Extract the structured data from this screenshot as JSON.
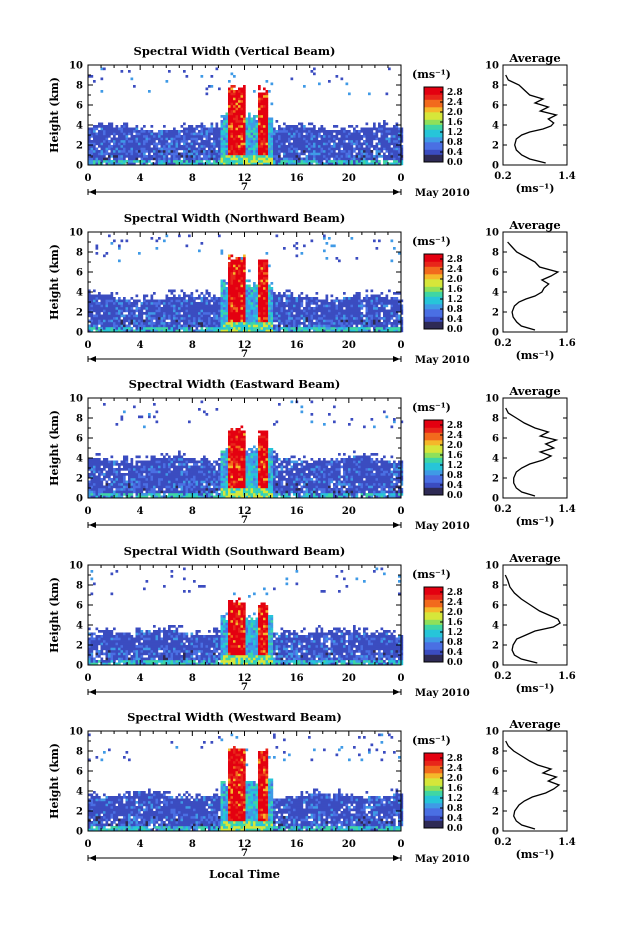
{
  "figure": {
    "x_label": "Local Time",
    "date_label": "May 2010",
    "day_label": "7",
    "average_title": "Average",
    "unit_label": "(ms⁻¹)"
  },
  "colors": {
    "scale": [
      "#2e2a55",
      "#3b4cc0",
      "#4a6fe3",
      "#3f9ae6",
      "#27c5d9",
      "#3fd6a4",
      "#8fe05a",
      "#d6e63a",
      "#f5b82a",
      "#f26a1d",
      "#e8261a",
      "#e40010"
    ]
  },
  "chart_data": [
    {
      "type": "heatmap",
      "title": "Spectral Width (Vertical Beam)",
      "xlabel": "",
      "ylabel": "Height (km)",
      "x_ticks": [
        "0",
        "4",
        "8",
        "12",
        "16",
        "20",
        "0"
      ],
      "y_ticks": [
        "0",
        "2",
        "4",
        "6",
        "8",
        "10"
      ],
      "xlim": [
        0,
        24
      ],
      "ylim": [
        0,
        10
      ],
      "colorbar": {
        "label": "(ms⁻¹)",
        "ticks": [
          "0.0",
          "0.4",
          "0.8",
          "1.2",
          "1.6",
          "2.0",
          "2.4",
          "2.8"
        ],
        "range": [
          0,
          3.0
        ]
      },
      "features": {
        "boundary_layer_top_km": 3.8,
        "convection_hours": [
          10,
          14
        ],
        "convection_top_km": 8.0
      },
      "average_profile": {
        "title": "Average",
        "xlabel": "(ms⁻¹)",
        "ylabel": "",
        "x_ticks": [
          "0.2",
          "1.4"
        ],
        "xlim": [
          0.2,
          1.4
        ],
        "y_ticks": [
          "0",
          "2",
          "4",
          "6",
          "8",
          "10"
        ],
        "ylim": [
          0,
          10
        ],
        "points": [
          [
            1.0,
            0.2
          ],
          [
            0.7,
            0.6
          ],
          [
            0.55,
            1.0
          ],
          [
            0.45,
            1.5
          ],
          [
            0.42,
            2.0
          ],
          [
            0.45,
            2.6
          ],
          [
            0.55,
            3.0
          ],
          [
            0.7,
            3.3
          ],
          [
            0.95,
            3.6
          ],
          [
            1.1,
            3.9
          ],
          [
            1.15,
            4.2
          ],
          [
            1.05,
            4.6
          ],
          [
            1.2,
            5.0
          ],
          [
            0.9,
            5.4
          ],
          [
            1.05,
            5.8
          ],
          [
            0.8,
            6.2
          ],
          [
            0.95,
            6.6
          ],
          [
            0.7,
            7.0
          ],
          [
            0.6,
            7.5
          ],
          [
            0.5,
            8.0
          ],
          [
            0.3,
            8.5
          ],
          [
            0.25,
            9.0
          ]
        ]
      }
    },
    {
      "type": "heatmap",
      "title": "Spectral Width (Northward Beam)",
      "xlabel": "",
      "ylabel": "Height (km)",
      "x_ticks": [
        "0",
        "4",
        "8",
        "12",
        "16",
        "20",
        "0"
      ],
      "y_ticks": [
        "0",
        "2",
        "4",
        "6",
        "8",
        "10"
      ],
      "xlim": [
        0,
        24
      ],
      "ylim": [
        0,
        10
      ],
      "colorbar": {
        "label": "(ms⁻¹)",
        "ticks": [
          "0.0",
          "0.4",
          "0.8",
          "1.2",
          "1.6",
          "2.0",
          "2.4",
          "2.8"
        ],
        "range": [
          0,
          3.0
        ]
      },
      "features": {
        "boundary_layer_top_km": 3.6,
        "convection_hours": [
          10,
          14
        ],
        "convection_top_km": 7.5
      },
      "average_profile": {
        "title": "Average",
        "xlabel": "(ms⁻¹)",
        "ylabel": "",
        "x_ticks": [
          "0.2",
          "1.6"
        ],
        "xlim": [
          0.2,
          1.6
        ],
        "y_ticks": [
          "0",
          "2",
          "4",
          "6",
          "8",
          "10"
        ],
        "ylim": [
          0,
          10
        ],
        "points": [
          [
            0.9,
            0.2
          ],
          [
            0.6,
            0.6
          ],
          [
            0.5,
            1.0
          ],
          [
            0.42,
            1.5
          ],
          [
            0.4,
            2.0
          ],
          [
            0.45,
            2.6
          ],
          [
            0.55,
            3.0
          ],
          [
            0.7,
            3.3
          ],
          [
            0.9,
            3.6
          ],
          [
            1.05,
            4.0
          ],
          [
            1.1,
            4.4
          ],
          [
            1.2,
            4.8
          ],
          [
            1.05,
            5.2
          ],
          [
            1.25,
            5.6
          ],
          [
            1.4,
            6.0
          ],
          [
            1.0,
            6.5
          ],
          [
            0.9,
            7.0
          ],
          [
            0.7,
            7.5
          ],
          [
            0.5,
            8.0
          ],
          [
            0.4,
            8.5
          ],
          [
            0.3,
            9.0
          ]
        ]
      }
    },
    {
      "type": "heatmap",
      "title": "Spectral Width (Eastward Beam)",
      "xlabel": "",
      "ylabel": "Height (km)",
      "x_ticks": [
        "0",
        "4",
        "8",
        "12",
        "16",
        "20",
        "0"
      ],
      "y_ticks": [
        "0",
        "2",
        "4",
        "6",
        "8",
        "10"
      ],
      "xlim": [
        0,
        24
      ],
      "ylim": [
        0,
        10
      ],
      "colorbar": {
        "label": "(ms⁻¹)",
        "ticks": [
          "0.0",
          "0.4",
          "0.8",
          "1.2",
          "1.6",
          "2.0",
          "2.4",
          "2.8"
        ],
        "range": [
          0,
          3.0
        ]
      },
      "features": {
        "boundary_layer_top_km": 4.0,
        "convection_hours": [
          10,
          14
        ],
        "convection_top_km": 7.0
      },
      "average_profile": {
        "title": "Average",
        "xlabel": "(ms⁻¹)",
        "ylabel": "",
        "x_ticks": [
          "0.2",
          "1.4"
        ],
        "xlim": [
          0.2,
          1.4
        ],
        "y_ticks": [
          "0",
          "2",
          "4",
          "6",
          "8",
          "10"
        ],
        "ylim": [
          0,
          10
        ],
        "points": [
          [
            0.8,
            0.2
          ],
          [
            0.55,
            0.6
          ],
          [
            0.45,
            1.0
          ],
          [
            0.4,
            1.5
          ],
          [
            0.4,
            2.0
          ],
          [
            0.45,
            2.6
          ],
          [
            0.55,
            3.0
          ],
          [
            0.7,
            3.4
          ],
          [
            0.95,
            3.8
          ],
          [
            1.1,
            4.2
          ],
          [
            0.9,
            4.6
          ],
          [
            1.15,
            5.0
          ],
          [
            1.0,
            5.4
          ],
          [
            1.2,
            5.8
          ],
          [
            0.9,
            6.2
          ],
          [
            1.05,
            6.6
          ],
          [
            0.8,
            7.0
          ],
          [
            0.6,
            7.5
          ],
          [
            0.45,
            8.0
          ],
          [
            0.3,
            8.5
          ],
          [
            0.25,
            9.0
          ]
        ]
      }
    },
    {
      "type": "heatmap",
      "title": "Spectral Width (Southward Beam)",
      "xlabel": "",
      "ylabel": "Height (km)",
      "x_ticks": [
        "0",
        "4",
        "8",
        "12",
        "16",
        "20",
        "0"
      ],
      "y_ticks": [
        "0",
        "2",
        "4",
        "6",
        "8",
        "10"
      ],
      "xlim": [
        0,
        24
      ],
      "ylim": [
        0,
        10
      ],
      "colorbar": {
        "label": "(ms⁻¹)",
        "ticks": [
          "0.0",
          "0.4",
          "0.8",
          "1.2",
          "1.6",
          "2.0",
          "2.4",
          "2.8"
        ],
        "range": [
          0,
          3.0
        ]
      },
      "features": {
        "boundary_layer_top_km": 3.4,
        "convection_hours": [
          10,
          14
        ],
        "convection_top_km": 6.5
      },
      "average_profile": {
        "title": "Average",
        "xlabel": "(ms⁻¹)",
        "ylabel": "",
        "x_ticks": [
          "0.2",
          "1.6"
        ],
        "xlim": [
          0.2,
          1.6
        ],
        "y_ticks": [
          "0",
          "2",
          "4",
          "6",
          "8",
          "10"
        ],
        "ylim": [
          0,
          10
        ],
        "points": [
          [
            0.95,
            0.2
          ],
          [
            0.6,
            0.6
          ],
          [
            0.45,
            1.0
          ],
          [
            0.4,
            1.5
          ],
          [
            0.42,
            2.0
          ],
          [
            0.5,
            2.6
          ],
          [
            0.7,
            3.0
          ],
          [
            0.9,
            3.4
          ],
          [
            1.3,
            3.8
          ],
          [
            1.45,
            4.2
          ],
          [
            1.4,
            4.6
          ],
          [
            1.2,
            5.0
          ],
          [
            1.0,
            5.4
          ],
          [
            0.8,
            6.0
          ],
          [
            0.6,
            6.6
          ],
          [
            0.45,
            7.2
          ],
          [
            0.35,
            7.8
          ],
          [
            0.3,
            8.5
          ],
          [
            0.25,
            9.0
          ]
        ]
      }
    },
    {
      "type": "heatmap",
      "title": "Spectral Width (Westward Beam)",
      "xlabel": "Local Time",
      "ylabel": "Height (km)",
      "x_ticks": [
        "0",
        "4",
        "8",
        "12",
        "16",
        "20",
        "0"
      ],
      "y_ticks": [
        "0",
        "2",
        "4",
        "6",
        "8",
        "10"
      ],
      "xlim": [
        0,
        24
      ],
      "ylim": [
        0,
        10
      ],
      "colorbar": {
        "label": "(ms⁻¹)",
        "ticks": [
          "0.0",
          "0.4",
          "0.8",
          "1.2",
          "1.6",
          "2.0",
          "2.4",
          "2.8"
        ],
        "range": [
          0,
          3.0
        ]
      },
      "features": {
        "boundary_layer_top_km": 3.7,
        "convection_hours": [
          10,
          14
        ],
        "convection_top_km": 8.5
      },
      "average_profile": {
        "title": "Average",
        "xlabel": "(ms⁻¹)",
        "ylabel": "",
        "x_ticks": [
          "0.2",
          "1.4"
        ],
        "xlim": [
          0.2,
          1.4
        ],
        "y_ticks": [
          "0",
          "2",
          "4",
          "6",
          "8",
          "10"
        ],
        "ylim": [
          0,
          10
        ],
        "points": [
          [
            0.8,
            0.2
          ],
          [
            0.55,
            0.6
          ],
          [
            0.45,
            1.0
          ],
          [
            0.4,
            1.5
          ],
          [
            0.42,
            2.0
          ],
          [
            0.5,
            2.6
          ],
          [
            0.6,
            3.0
          ],
          [
            0.75,
            3.4
          ],
          [
            1.0,
            3.8
          ],
          [
            1.15,
            4.2
          ],
          [
            1.25,
            4.6
          ],
          [
            1.05,
            5.0
          ],
          [
            1.2,
            5.4
          ],
          [
            0.95,
            5.8
          ],
          [
            1.1,
            6.2
          ],
          [
            0.85,
            6.6
          ],
          [
            0.7,
            7.0
          ],
          [
            0.55,
            7.5
          ],
          [
            0.4,
            8.0
          ],
          [
            0.3,
            8.5
          ],
          [
            0.25,
            9.0
          ]
        ]
      }
    }
  ]
}
